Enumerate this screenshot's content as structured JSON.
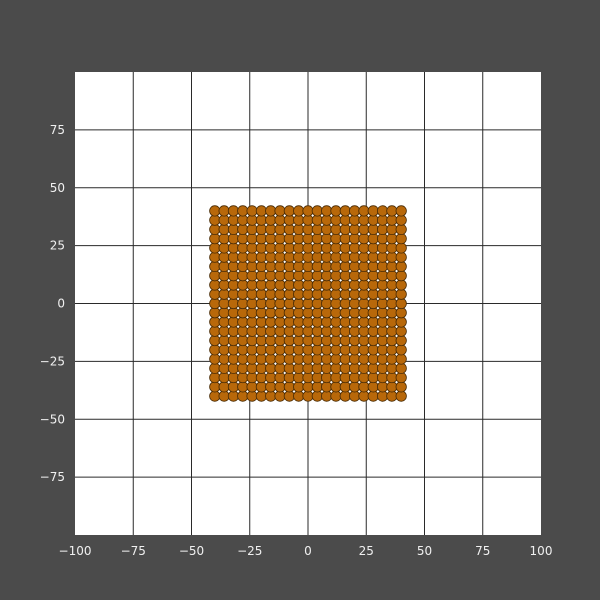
{
  "colors": {
    "background": "#4b4b4b",
    "plot_area": "#ffffff",
    "grid": "#2a2a2a",
    "tick_text": "#f0f0f0",
    "marker_fill": "#b8680a",
    "marker_edge": "#4a2c06"
  },
  "chart_data": {
    "type": "scatter",
    "title": "",
    "xlabel": "",
    "ylabel": "",
    "xlim": [
      -100,
      100
    ],
    "ylim": [
      -100,
      100
    ],
    "grid": true,
    "legend": "none",
    "x_ticks": [
      -100,
      -75,
      -50,
      -25,
      0,
      25,
      50,
      75,
      100
    ],
    "y_ticks": [
      -75,
      -50,
      -25,
      0,
      25,
      50,
      75
    ],
    "x_tick_labels": [
      "−100",
      "−75",
      "−50",
      "−25",
      "0",
      "25",
      "50",
      "75",
      "100"
    ],
    "y_tick_labels": [
      "−75",
      "−50",
      "−25",
      "0",
      "25",
      "50",
      "75"
    ],
    "points": {
      "pattern": "regular-grid",
      "x_start": -40,
      "x_end": 40,
      "x_count": 21,
      "y_start": -40,
      "y_end": 40,
      "y_count": 21
    }
  }
}
